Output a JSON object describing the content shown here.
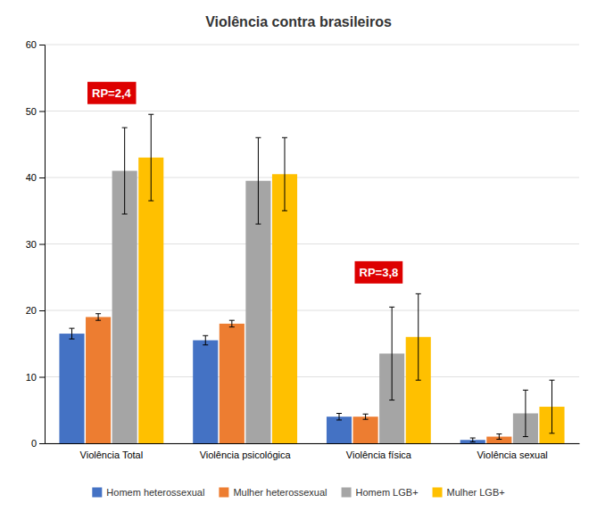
{
  "chart_data": {
    "type": "bar",
    "title": "Violência contra brasileiros",
    "categories": [
      "Violência Total",
      "Violência psicológica",
      "Violência física",
      "Violência sexual"
    ],
    "series": [
      {
        "name": "Homem heterossexual",
        "color": "#4472C4",
        "values": [
          16.5,
          15.5,
          4.0,
          0.5
        ],
        "errors": [
          0.8,
          0.7,
          0.5,
          0.3
        ]
      },
      {
        "name": "Mulher heterossexual",
        "color": "#ED7D31",
        "values": [
          19.0,
          18.0,
          4.0,
          1.0
        ],
        "errors": [
          0.5,
          0.5,
          0.4,
          0.4
        ]
      },
      {
        "name": "Homem LGB+",
        "color": "#A5A5A5",
        "values": [
          41.0,
          39.5,
          13.5,
          4.5
        ],
        "errors": [
          6.5,
          6.5,
          7.0,
          3.5
        ]
      },
      {
        "name": "Mulher LGB+",
        "color": "#FFC000",
        "values": [
          43.0,
          40.5,
          16.0,
          5.5
        ],
        "errors": [
          6.5,
          5.5,
          6.5,
          4.0
        ]
      }
    ],
    "annotations": [
      {
        "text": "RP=2,4",
        "category": "Violência Total",
        "color": "#DD0000"
      },
      {
        "text": "RP=3,8",
        "category": "Violência física",
        "color": "#DD0000"
      }
    ],
    "ylim": [
      0,
      60
    ],
    "yticks": [
      0,
      10,
      20,
      30,
      40,
      50,
      60
    ],
    "grid": true,
    "legend": "bottom"
  }
}
